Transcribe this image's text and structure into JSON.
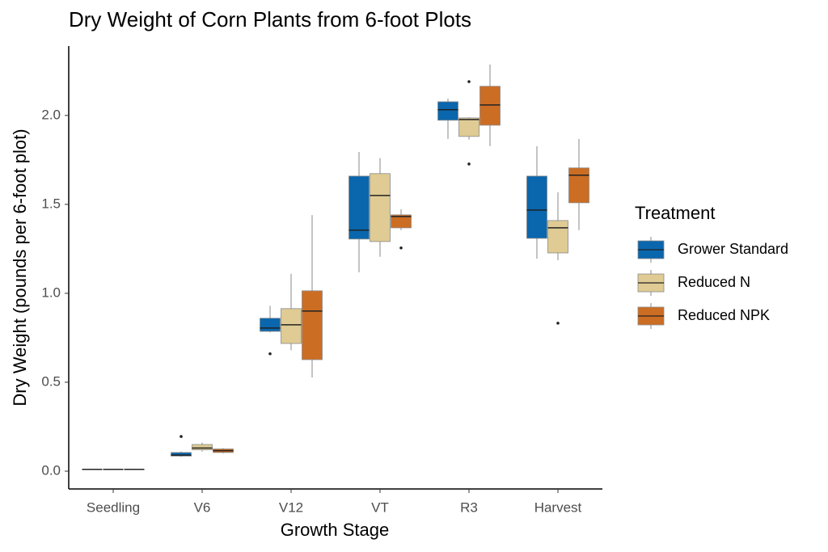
{
  "chart_data": {
    "type": "box",
    "title": "Dry Weight of Corn Plants from 6-foot Plots",
    "x_label": "Growth Stage",
    "y_label": "Dry Weight (pounds per 6-foot plot)",
    "legend_title": "Treatment",
    "legend_position": "right",
    "grid": false,
    "categories": [
      "Seedling",
      "V6",
      "V12",
      "VT",
      "R3",
      "Harvest"
    ],
    "ylim": [
      -0.1,
      2.39
    ],
    "yticks": [
      {
        "value": 0,
        "label": "0.0"
      },
      0.5,
      {
        "value": 1,
        "label": "1.0"
      },
      1.5,
      {
        "value": 2,
        "label": "2.0"
      }
    ],
    "series": [
      {
        "name": "Grower Standard",
        "color": "#0a66ad",
        "values": [
          {
            "min": 0.01,
            "q1": 0.01,
            "median": 0.01,
            "q3": 0.01,
            "max": 0.01,
            "outliers": []
          },
          {
            "min": 0.08,
            "q1": 0.085,
            "median": 0.09,
            "q3": 0.105,
            "max": 0.11,
            "outliers": [
              0.195
            ]
          },
          {
            "min": 0.78,
            "q1": 0.786,
            "median": 0.805,
            "q3": 0.86,
            "max": 0.93,
            "outliers": [
              0.66
            ]
          },
          {
            "min": 1.118,
            "q1": 1.305,
            "median": 1.355,
            "q3": 1.659,
            "max": 1.795,
            "outliers": []
          },
          {
            "min": 1.868,
            "q1": 1.973,
            "median": 2.032,
            "q3": 2.077,
            "max": 2.095,
            "outliers": []
          },
          {
            "min": 1.195,
            "q1": 1.309,
            "median": 1.468,
            "q3": 1.659,
            "max": 1.827,
            "outliers": []
          }
        ]
      },
      {
        "name": "Reduced N",
        "color": "#dfcb93",
        "values": [
          {
            "min": 0.01,
            "q1": 0.01,
            "median": 0.01,
            "q3": 0.01,
            "max": 0.01,
            "outliers": []
          },
          {
            "min": 0.11,
            "q1": 0.12,
            "median": 0.13,
            "q3": 0.15,
            "max": 0.16,
            "outliers": []
          },
          {
            "min": 0.68,
            "q1": 0.718,
            "median": 0.823,
            "q3": 0.914,
            "max": 1.11,
            "outliers": []
          },
          {
            "min": 1.205,
            "q1": 1.291,
            "median": 1.55,
            "q3": 1.673,
            "max": 1.76,
            "outliers": []
          },
          {
            "min": 1.864,
            "q1": 1.882,
            "median": 1.977,
            "q3": 1.986,
            "max": 1.99,
            "outliers": [
              2.19,
              1.727
            ]
          },
          {
            "min": 1.186,
            "q1": 1.227,
            "median": 1.368,
            "q3": 1.409,
            "max": 1.568,
            "outliers": [
              0.832
            ]
          }
        ]
      },
      {
        "name": "Reduced NPK",
        "color": "#cc6d24",
        "values": [
          {
            "min": 0.01,
            "q1": 0.01,
            "median": 0.01,
            "q3": 0.01,
            "max": 0.01,
            "outliers": []
          },
          {
            "min": 0.1,
            "q1": 0.105,
            "median": 0.115,
            "q3": 0.125,
            "max": 0.13,
            "outliers": []
          },
          {
            "min": 0.527,
            "q1": 0.627,
            "median": 0.9,
            "q3": 1.014,
            "max": 1.44,
            "outliers": []
          },
          {
            "min": 1.355,
            "q1": 1.368,
            "median": 1.432,
            "q3": 1.441,
            "max": 1.473,
            "outliers": [
              1.255
            ]
          },
          {
            "min": 1.827,
            "q1": 1.945,
            "median": 2.059,
            "q3": 2.164,
            "max": 2.286,
            "outliers": []
          },
          {
            "min": 1.355,
            "q1": 1.509,
            "median": 1.664,
            "q3": 1.705,
            "max": 1.868,
            "outliers": []
          }
        ]
      }
    ]
  }
}
